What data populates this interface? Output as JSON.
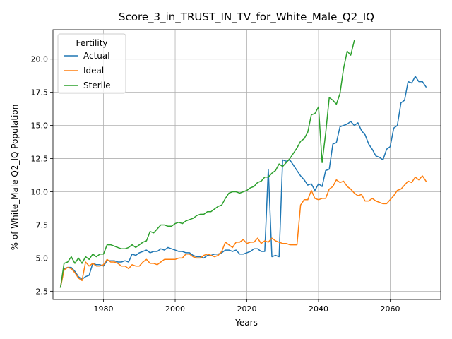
{
  "chart_data": {
    "type": "line",
    "title": "Score_3_in_TRUST_IN_TV_for_White_Male_Q2_IQ",
    "xlabel": "Years",
    "ylabel": "% of White_Male Q2_IQ Population",
    "xlim": [
      1965.9,
      2074.1
    ],
    "ylim": [
      1.88,
      22.22
    ],
    "xticks": [
      1980,
      2000,
      2020,
      2040,
      2060
    ],
    "yticks": [
      2.5,
      5.0,
      7.5,
      10.0,
      12.5,
      15.0,
      17.5,
      20.0
    ],
    "xtick_labels": [
      "1980",
      "2000",
      "2020",
      "2040",
      "2060"
    ],
    "ytick_labels": [
      "2.5",
      "5.0",
      "7.5",
      "10.0",
      "12.5",
      "15.0",
      "17.5",
      "20.0"
    ],
    "grid": true,
    "legend": {
      "title": "Fertility",
      "placement": "top-left"
    },
    "series": [
      {
        "name": "Actual",
        "color": "#1f77b4",
        "x": [
          1968,
          1969,
          1970,
          1971,
          1972,
          1973,
          1974,
          1975,
          1976,
          1977,
          1978,
          1979,
          1980,
          1981,
          1982,
          1983,
          1984,
          1985,
          1986,
          1987,
          1988,
          1989,
          1990,
          1991,
          1992,
          1993,
          1994,
          1995,
          1996,
          1997,
          1998,
          1999,
          2000,
          2001,
          2002,
          2003,
          2004,
          2005,
          2006,
          2007,
          2008,
          2009,
          2010,
          2011,
          2012,
          2013,
          2014,
          2015,
          2016,
          2017,
          2018,
          2019,
          2020,
          2021,
          2022,
          2023,
          2024,
          2025,
          2026,
          2027,
          2028,
          2029,
          2030,
          2031,
          2032,
          2033,
          2034,
          2035,
          2036,
          2037,
          2038,
          2039,
          2040,
          2041,
          2042,
          2043,
          2044,
          2045,
          2046,
          2047,
          2048,
          2049,
          2050,
          2051,
          2052,
          2053,
          2054,
          2055,
          2056,
          2057,
          2058,
          2059,
          2060,
          2061,
          2062,
          2063,
          2064,
          2065,
          2066,
          2067,
          2068,
          2069,
          2070
        ],
        "y": [
          2.8,
          4.2,
          4.3,
          4.3,
          4.0,
          3.6,
          3.4,
          3.6,
          3.7,
          4.6,
          4.5,
          4.5,
          4.4,
          4.8,
          4.8,
          4.8,
          4.7,
          4.7,
          4.8,
          4.7,
          5.3,
          5.2,
          5.4,
          5.5,
          5.6,
          5.4,
          5.5,
          5.5,
          5.7,
          5.6,
          5.8,
          5.7,
          5.6,
          5.5,
          5.5,
          5.4,
          5.4,
          5.2,
          5.1,
          5.1,
          5.0,
          5.2,
          5.2,
          5.3,
          5.3,
          5.4,
          5.6,
          5.6,
          5.5,
          5.6,
          5.3,
          5.3,
          5.4,
          5.5,
          5.7,
          5.7,
          5.5,
          5.5,
          11.7,
          5.1,
          5.2,
          5.1,
          12.4,
          12.3,
          12.4,
          12.0,
          11.6,
          11.2,
          10.9,
          10.5,
          10.6,
          10.1,
          10.6,
          10.4,
          11.6,
          11.7,
          13.6,
          13.7,
          14.9,
          15.0,
          15.1,
          15.3,
          15.0,
          15.2,
          14.6,
          14.3,
          13.6,
          13.2,
          12.7,
          12.6,
          12.4,
          13.2,
          13.4,
          14.8,
          15.0,
          16.7,
          16.9,
          18.3,
          18.2,
          18.7,
          18.3,
          18.3,
          17.9
        ]
      },
      {
        "name": "Ideal",
        "color": "#ff7f0e",
        "x": [
          1968,
          1969,
          1970,
          1971,
          1972,
          1973,
          1974,
          1975,
          1976,
          1977,
          1978,
          1979,
          1980,
          1981,
          1982,
          1983,
          1984,
          1985,
          1986,
          1987,
          1988,
          1989,
          1990,
          1991,
          1992,
          1993,
          1994,
          1995,
          1996,
          1997,
          1998,
          1999,
          2000,
          2001,
          2002,
          2003,
          2004,
          2005,
          2006,
          2007,
          2008,
          2009,
          2010,
          2011,
          2012,
          2013,
          2014,
          2015,
          2016,
          2017,
          2018,
          2019,
          2020,
          2021,
          2022,
          2023,
          2024,
          2025,
          2026,
          2027,
          2028,
          2029,
          2030,
          2031,
          2032,
          2033,
          2034,
          2035,
          2036,
          2037,
          2038,
          2039,
          2040,
          2041,
          2042,
          2043,
          2044,
          2045,
          2046,
          2047,
          2048,
          2049,
          2050,
          2051,
          2052,
          2053,
          2054,
          2055,
          2056,
          2057,
          2058,
          2059,
          2060,
          2061,
          2062,
          2063,
          2064,
          2065,
          2066,
          2067,
          2068,
          2069,
          2070
        ],
        "y": [
          2.8,
          4.1,
          4.3,
          4.2,
          3.9,
          3.5,
          3.3,
          4.7,
          4.4,
          4.6,
          4.4,
          4.4,
          4.5,
          4.9,
          4.7,
          4.7,
          4.6,
          4.4,
          4.4,
          4.2,
          4.5,
          4.4,
          4.4,
          4.7,
          4.9,
          4.6,
          4.6,
          4.5,
          4.7,
          4.9,
          4.9,
          4.9,
          4.9,
          5.0,
          5.0,
          5.3,
          5.3,
          5.1,
          5.0,
          5.0,
          5.2,
          5.3,
          5.2,
          5.1,
          5.2,
          5.5,
          6.2,
          6.0,
          5.8,
          6.2,
          6.2,
          6.4,
          6.1,
          6.2,
          6.2,
          6.5,
          6.1,
          6.3,
          6.2,
          6.5,
          6.3,
          6.2,
          6.1,
          6.1,
          6.0,
          6.0,
          6.0,
          9.0,
          9.4,
          9.4,
          10.1,
          9.5,
          9.4,
          9.5,
          9.5,
          10.2,
          10.4,
          10.9,
          10.7,
          10.8,
          10.4,
          10.2,
          9.9,
          9.7,
          9.8,
          9.3,
          9.3,
          9.5,
          9.3,
          9.2,
          9.1,
          9.1,
          9.4,
          9.7,
          10.1,
          10.2,
          10.5,
          10.8,
          10.7,
          11.1,
          10.9,
          11.2,
          10.8
        ]
      },
      {
        "name": "Sterile",
        "color": "#2ca02c",
        "x": [
          1968,
          1969,
          1970,
          1971,
          1972,
          1973,
          1974,
          1975,
          1976,
          1977,
          1978,
          1979,
          1980,
          1981,
          1982,
          1983,
          1984,
          1985,
          1986,
          1987,
          1988,
          1989,
          1990,
          1991,
          1992,
          1993,
          1994,
          1995,
          1996,
          1997,
          1998,
          1999,
          2000,
          2001,
          2002,
          2003,
          2004,
          2005,
          2006,
          2007,
          2008,
          2009,
          2010,
          2011,
          2012,
          2013,
          2014,
          2015,
          2016,
          2017,
          2018,
          2019,
          2020,
          2021,
          2022,
          2023,
          2024,
          2025,
          2026,
          2027,
          2028,
          2029,
          2030,
          2031,
          2032,
          2033,
          2034,
          2035,
          2036,
          2037,
          2038,
          2039,
          2040,
          2041,
          2042,
          2043,
          2044,
          2045,
          2046,
          2047,
          2048,
          2049,
          2050
        ],
        "y": [
          2.8,
          4.6,
          4.7,
          5.1,
          4.6,
          5.0,
          4.6,
          5.1,
          4.9,
          5.3,
          5.1,
          5.3,
          5.3,
          6.0,
          6.0,
          5.9,
          5.8,
          5.7,
          5.7,
          5.8,
          6.0,
          5.8,
          6.0,
          6.2,
          6.3,
          7.0,
          6.9,
          7.2,
          7.5,
          7.5,
          7.4,
          7.4,
          7.6,
          7.7,
          7.6,
          7.8,
          7.9,
          8.0,
          8.2,
          8.3,
          8.3,
          8.5,
          8.5,
          8.7,
          8.9,
          9.0,
          9.5,
          9.9,
          10.0,
          10.0,
          9.9,
          10.0,
          10.1,
          10.3,
          10.4,
          10.7,
          10.8,
          11.1,
          11.1,
          11.4,
          11.6,
          12.1,
          11.9,
          12.2,
          12.5,
          12.9,
          13.3,
          13.8,
          14.0,
          14.5,
          15.8,
          15.9,
          16.4,
          12.2,
          14.4,
          17.1,
          16.9,
          16.6,
          17.4,
          19.3,
          20.6,
          20.3,
          21.4
        ]
      }
    ]
  }
}
